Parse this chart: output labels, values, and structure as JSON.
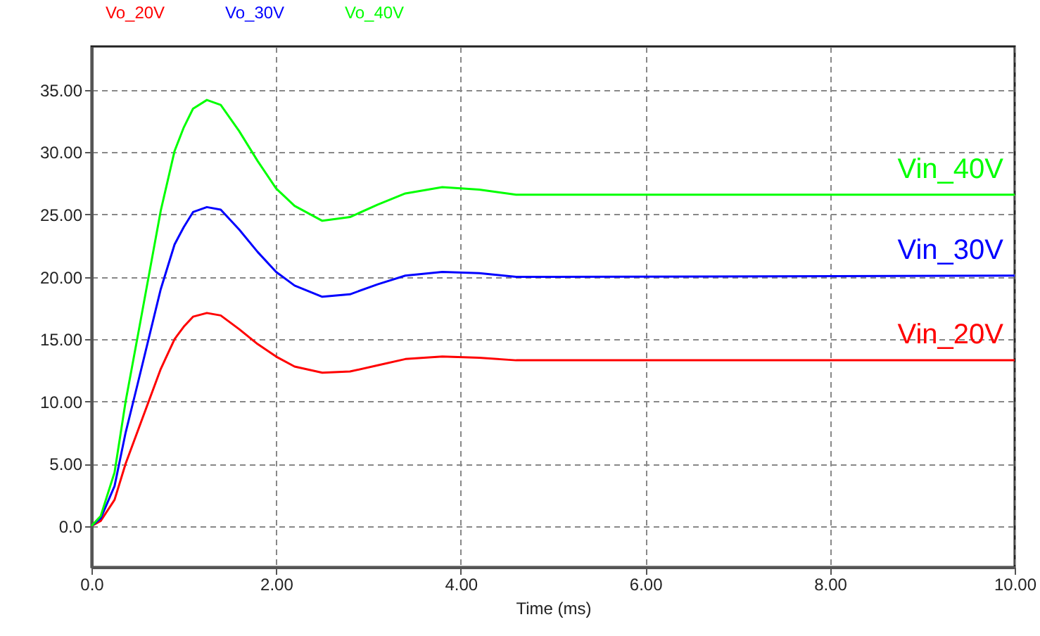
{
  "chart_data": {
    "type": "line",
    "xlabel": "Time (ms)",
    "x": [
      0,
      0.1,
      0.25,
      0.37,
      0.5,
      0.75,
      0.9,
      1.0,
      1.1,
      1.25,
      1.4,
      1.6,
      1.8,
      2.0,
      2.2,
      2.5,
      2.8,
      3.1,
      3.4,
      3.8,
      4.2,
      4.6,
      5.0,
      10.0
    ],
    "series": [
      {
        "name": "Vo_20V",
        "color": "#ff0000",
        "values": [
          0,
          0.4,
          2.1,
          5.0,
          7.6,
          12.6,
          15.0,
          16.0,
          16.8,
          17.1,
          16.9,
          15.8,
          14.6,
          13.6,
          12.8,
          12.3,
          12.4,
          12.9,
          13.4,
          13.6,
          13.5,
          13.3,
          13.3,
          13.3
        ]
      },
      {
        "name": "Vo_30V",
        "color": "#0000ff",
        "values": [
          0,
          0.6,
          3.2,
          7.5,
          11.4,
          19.0,
          22.6,
          24.0,
          25.2,
          25.6,
          25.4,
          23.8,
          22.0,
          20.4,
          19.3,
          18.4,
          18.6,
          19.4,
          20.1,
          20.4,
          20.3,
          20.0,
          20.0,
          20.1
        ]
      },
      {
        "name": "Vo_40V",
        "color": "#00ff00",
        "values": [
          0,
          0.8,
          4.3,
          10.0,
          15.2,
          25.3,
          30.1,
          32.0,
          33.5,
          34.2,
          33.8,
          31.7,
          29.3,
          27.1,
          25.7,
          24.5,
          24.8,
          25.8,
          26.7,
          27.2,
          27.0,
          26.6,
          26.6,
          26.6
        ]
      }
    ],
    "annotations": [
      "Vin_20V",
      "Vin_30V",
      "Vin_40V"
    ],
    "xlim": [
      0,
      10
    ],
    "xticks": [
      {
        "value": 0,
        "label": "0.0"
      },
      {
        "value": 2,
        "label": "2.00"
      },
      {
        "value": 4,
        "label": "4.00"
      },
      {
        "value": 6,
        "label": "6.00"
      },
      {
        "value": 8,
        "label": "8.00"
      },
      {
        "value": 10,
        "label": "10.00"
      }
    ],
    "ylim": [
      -3.3,
      38.5
    ],
    "yticks": [
      {
        "value": 0,
        "label": "0.0"
      },
      {
        "value": 5,
        "label": "5.00"
      },
      {
        "value": 10,
        "label": "10.00"
      },
      {
        "value": 15,
        "label": "15.00"
      },
      {
        "value": 20,
        "label": "20.00"
      },
      {
        "value": 25,
        "label": "25.00"
      },
      {
        "value": 30,
        "label": "30.00"
      },
      {
        "value": 35,
        "label": "35.00"
      }
    ],
    "grid": true,
    "legend": "top left"
  }
}
